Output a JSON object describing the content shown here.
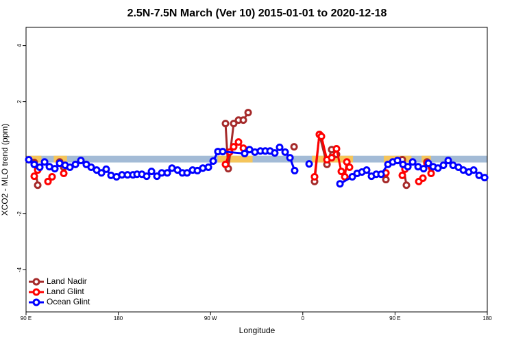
{
  "chart_data": {
    "type": "line",
    "title": "2.5N-7.5N March (Ver 10)   2015-01-01 to 2020-12-18",
    "x_label": "Longitude",
    "y_label": "XCO2 - MLO trend (ppm)",
    "xlim": [
      90,
      540
    ],
    "ylim": [
      -5.5,
      4.65
    ],
    "xticks": [
      {
        "value": 90,
        "label": "90 E"
      },
      180,
      {
        "value": 270,
        "label": "90 W"
      },
      {
        "value": 360,
        "label": "0"
      },
      {
        "value": 450,
        "label": "90 E"
      },
      {
        "value": 540,
        "label": "180"
      }
    ],
    "yticks": [
      -4,
      -2,
      2,
      4
    ],
    "band": [
      -0.17,
      0.07
    ],
    "band_color": "#a3bbd6",
    "land_color": "#f5c55b",
    "land_bands": [
      [
        91,
        105
      ],
      [
        117,
        130
      ],
      [
        277,
        311
      ],
      [
        369,
        409
      ],
      [
        439,
        466
      ],
      [
        476,
        485
      ]
    ],
    "legend": "bottom-left",
    "series": [
      {
        "name": "Land Nadir",
        "color": "#a52a2a",
        "x": [
          98.0,
          101.4,
          null,
          122.8,
          126.8,
          null,
          284.6,
          287.3,
          292.6,
          297.3,
          302.0,
          306.7,
          null,
          351.5,
          null,
          371.5,
          376.2,
          383.6,
          388.2,
          392.9,
          null,
          441.1,
          null,
          457.1,
          461.1,
          null,
          481.2
        ],
        "values": [
          -0.17,
          -0.98,
          null,
          -0.15,
          -0.34,
          null,
          1.22,
          -0.39,
          1.22,
          1.34,
          1.34,
          1.61,
          null,
          0.39,
          null,
          -0.85,
          0.83,
          -0.24,
          0.29,
          0.12,
          null,
          -0.78,
          null,
          -0.07,
          -0.98,
          null,
          -0.15
        ]
      },
      {
        "name": "Land Glint",
        "color": "#ff0000",
        "x": [
          98.0,
          101.4,
          null,
          111.4,
          115.4,
          null,
          126.8,
          null,
          284.6,
          288.6,
          292.6,
          297.3,
          302.0,
          null,
          371.5,
          376.2,
          378.2,
          383.6,
          388.2,
          392.9,
          397.6,
          null,
          401.0,
          403.0,
          405.6,
          null,
          441.1,
          null,
          457.1,
          459.7,
          null,
          473.2,
          477.2,
          null,
          481.2,
          485.2
        ],
        "values": [
          -0.66,
          -0.44,
          null,
          -0.85,
          -0.68,
          null,
          -0.56,
          null,
          -0.24,
          0.2,
          0.39,
          0.56,
          0.34,
          null,
          -0.68,
          0.83,
          0.76,
          -0.07,
          0,
          0.32,
          -0.49,
          null,
          -0.68,
          -0.15,
          -0.34,
          null,
          -0.54,
          null,
          -0.63,
          -0.41,
          null,
          -0.85,
          -0.73,
          null,
          -0.2,
          -0.56
        ]
      },
      {
        "name": "Ocean Glint",
        "color": "#0000ff",
        "x": [
          92.7,
          98.0,
          103.4,
          108.1,
          112.8,
          118.1,
          122.8,
          128.1,
          132.8,
          138.2,
          143.5,
          148.8,
          153.5,
          158.9,
          163.6,
          168.2,
          172.9,
          178.3,
          183.6,
          189.0,
          194.3,
          198.3,
          203.0,
          207.7,
          212.4,
          217.7,
          222.4,
          227.8,
          232.4,
          237.8,
          242.5,
          247.1,
          252.5,
          257.2,
          262.5,
          267.9,
          272.6,
          277.2,
          281.9,
          303.3,
          308.0,
          313.3,
          318.7,
          323.4,
          328.1,
          332.7,
          337.4,
          342.8,
          347.5,
          352.1,
          null,
          366.2,
          null,
          396.3,
          408.3,
          413.0,
          417.7,
          422.3,
          427.0,
          431.7,
          436.4,
          443.1,
          447.8,
          452.4,
          457.8,
          462.5,
          467.2,
          472.5,
          477.9,
          482.5,
          487.2,
          491.9,
          497.2,
          501.9,
          506.6,
          511.9,
          516.6,
          522.0,
          526.7,
          532.0,
          537.4
        ],
        "values": [
          -0.07,
          -0.24,
          -0.34,
          -0.15,
          -0.32,
          -0.39,
          -0.2,
          -0.27,
          -0.34,
          -0.24,
          -0.1,
          -0.24,
          -0.34,
          -0.44,
          -0.54,
          -0.41,
          -0.63,
          -0.68,
          -0.61,
          -0.61,
          -0.61,
          -0.59,
          -0.59,
          -0.66,
          -0.49,
          -0.66,
          -0.54,
          -0.54,
          -0.37,
          -0.44,
          -0.54,
          -0.54,
          -0.44,
          -0.46,
          -0.37,
          -0.34,
          -0.12,
          0.22,
          0.22,
          0.15,
          0.29,
          0.2,
          0.24,
          0.24,
          0.24,
          0.17,
          0.37,
          0.2,
          0,
          -0.46,
          null,
          -0.22,
          null,
          -0.93,
          -0.68,
          -0.56,
          -0.51,
          -0.44,
          -0.66,
          -0.59,
          -0.59,
          -0.24,
          -0.15,
          -0.1,
          -0.24,
          -0.32,
          -0.15,
          -0.32,
          -0.39,
          -0.2,
          -0.32,
          -0.37,
          -0.27,
          -0.1,
          -0.27,
          -0.34,
          -0.44,
          -0.51,
          -0.44,
          -0.63,
          -0.71
        ]
      }
    ]
  }
}
